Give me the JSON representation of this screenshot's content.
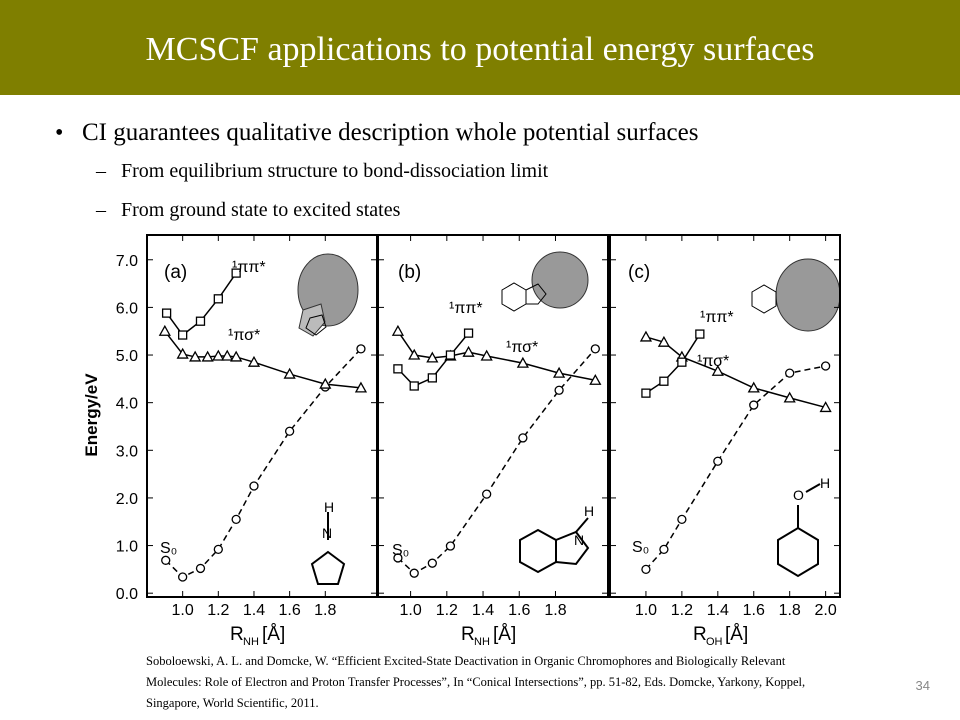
{
  "header": {
    "title": "MCSCF applications to potential energy surfaces"
  },
  "bullets": [
    {
      "text": "CI guarantees qualitative description whole potential surfaces",
      "sub": [
        "From equilibrium structure to bond-dissociation limit",
        "From ground state to excited states"
      ]
    }
  ],
  "figure": {
    "y_label": "Energy/eV",
    "ylim": [
      -0.08,
      7.52
    ],
    "yticks": [
      {
        "value": 0,
        "label": "0.0"
      },
      {
        "value": 1,
        "label": "1.0"
      },
      {
        "value": 2,
        "label": "2.0"
      },
      {
        "value": 3,
        "label": "3.0"
      },
      {
        "value": 4,
        "label": "4.0"
      },
      {
        "value": 5,
        "label": "5.0"
      },
      {
        "value": 6,
        "label": "6.0"
      },
      {
        "value": 7,
        "label": "7.0"
      }
    ],
    "panels": [
      {
        "tag": "(a)",
        "x_label": {
          "symbol": "R",
          "subscript": "NH",
          "unit": "[Å]"
        },
        "atoms": [
          "H",
          "N"
        ],
        "xlim": [
          0.8,
          2.09
        ],
        "xticks": [
          {
            "value": 1,
            "label": "1.0"
          },
          {
            "value": 1.2,
            "label": "1.2"
          },
          {
            "value": 1.4,
            "label": "1.4"
          },
          {
            "value": 1.6,
            "label": "1.6"
          },
          {
            "value": 1.8,
            "label": "1.8"
          }
        ],
        "series": [
          {
            "name": "S₀",
            "marker": "circle",
            "dashed": true,
            "x": [
              0.905,
              1.0,
              1.1,
              1.2,
              1.3,
              1.4,
              1.6,
              1.8,
              2.0
            ],
            "values": [
              0.69,
              0.34,
              0.52,
              0.92,
              1.55,
              2.25,
              3.4,
              4.33,
              5.13
            ]
          },
          {
            "name": "¹πσ*",
            "marker": "triangle",
            "dashed": false,
            "x": [
              0.9,
              1.0,
              1.07,
              1.14,
              1.2,
              1.25,
              1.3,
              1.4,
              1.6,
              1.8,
              2.0
            ],
            "values": [
              5.5,
              5.02,
              4.96,
              4.96,
              4.98,
              4.98,
              4.96,
              4.85,
              4.6,
              4.39,
              4.31
            ]
          },
          {
            "name": "¹ππ*",
            "marker": "square",
            "dashed": false,
            "x": [
              0.91,
              1.0,
              1.1,
              1.2,
              1.3
            ],
            "values": [
              5.88,
              5.42,
              5.71,
              6.18,
              6.72
            ]
          }
        ]
      },
      {
        "tag": "(b)",
        "x_label": {
          "symbol": "R",
          "subscript": "NH",
          "unit": "[Å]"
        },
        "atoms": [
          "H",
          "N"
        ],
        "xlim": [
          0.82,
          2.09
        ],
        "xticks": [
          {
            "value": 1,
            "label": "1.0"
          },
          {
            "value": 1.2,
            "label": "1.2"
          },
          {
            "value": 1.4,
            "label": "1.4"
          },
          {
            "value": 1.6,
            "label": "1.6"
          },
          {
            "value": 1.8,
            "label": "1.8"
          }
        ],
        "series": [
          {
            "name": "S₀",
            "marker": "circle",
            "dashed": true,
            "x": [
              0.93,
              1.02,
              1.12,
              1.22,
              1.42,
              1.62,
              1.82,
              2.02
            ],
            "values": [
              0.74,
              0.42,
              0.63,
              0.99,
              2.08,
              3.26,
              4.26,
              5.13
            ]
          },
          {
            "name": "¹πσ*",
            "marker": "triangle",
            "dashed": false,
            "x": [
              0.93,
              1.02,
              1.12,
              1.22,
              1.32,
              1.42,
              1.62,
              1.82,
              2.02
            ],
            "values": [
              5.5,
              5.0,
              4.94,
              4.98,
              5.06,
              4.98,
              4.83,
              4.62,
              4.47
            ]
          },
          {
            "name": "¹ππ*",
            "marker": "square",
            "dashed": false,
            "x": [
              0.93,
              1.02,
              1.12,
              1.22,
              1.32
            ],
            "values": [
              4.71,
              4.35,
              4.52,
              5.0,
              5.46
            ]
          }
        ]
      },
      {
        "tag": "(c)",
        "x_label": {
          "symbol": "R",
          "subscript": "OH",
          "unit": "[Å]"
        },
        "atoms": [
          "O",
          "H"
        ],
        "xlim": [
          0.8,
          2.08
        ],
        "xticks": [
          {
            "value": 1,
            "label": "1.0"
          },
          {
            "value": 1.2,
            "label": "1.2"
          },
          {
            "value": 1.4,
            "label": "1.4"
          },
          {
            "value": 1.6,
            "label": "1.6"
          },
          {
            "value": 1.8,
            "label": "1.8"
          },
          {
            "value": 2,
            "label": "2.0"
          }
        ],
        "series": [
          {
            "name": "S₀",
            "marker": "circle",
            "dashed": true,
            "x": [
              1.0,
              1.1,
              1.2,
              1.4,
              1.6,
              1.8,
              2.0
            ],
            "values": [
              0.5,
              0.92,
              1.55,
              2.77,
              3.95,
              4.62,
              4.77
            ]
          },
          {
            "name": "¹πσ*",
            "marker": "triangle",
            "dashed": false,
            "x": [
              1.0,
              1.1,
              1.2,
              1.4,
              1.6,
              1.8,
              2.0
            ],
            "values": [
              5.38,
              5.27,
              4.96,
              4.66,
              4.31,
              4.1,
              3.9
            ]
          },
          {
            "name": "¹ππ*",
            "marker": "square",
            "dashed": false,
            "x": [
              1.0,
              1.1,
              1.2,
              1.3
            ],
            "values": [
              4.2,
              4.45,
              4.85,
              5.44
            ]
          }
        ]
      }
    ]
  },
  "citation": [
    "Soboloewski, A. L. and Domcke, W. “Efficient Excited-State Deactivation in Organic Chromophores and Biologically Relevant",
    "Molecules: Role of Electron and Proton Transfer Processes”, In “Conical Intersections”, pp. 51-82, Eds. Domcke, Yarkony, Koppel,",
    "Singapore, World Scientific, 2011."
  ],
  "page_number": "34"
}
